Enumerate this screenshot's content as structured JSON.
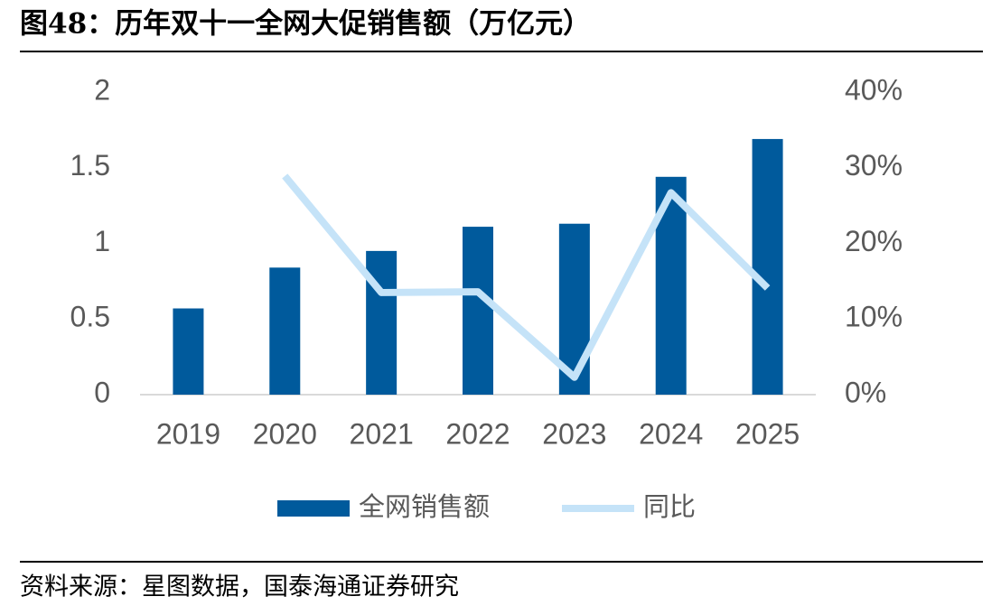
{
  "title": "图48：历年双十一全网大促销售额（万亿元）",
  "source": "资料来源：星图数据，国泰海通证券研究",
  "chart_data": {
    "type": "bar-line",
    "categories": [
      "2019",
      "2020",
      "2021",
      "2022",
      "2023",
      "2024",
      "2025"
    ],
    "series": [
      {
        "name": "全网销售额",
        "type": "bar",
        "color": "#005a9c",
        "values": [
          0.57,
          0.84,
          0.95,
          1.11,
          1.13,
          1.44,
          1.69
        ]
      },
      {
        "name": "同比",
        "type": "line",
        "axis": "y2",
        "color": "#c5e3f8",
        "values": [
          null,
          28.9,
          13.5,
          13.6,
          2.3,
          26.7,
          14.1
        ]
      }
    ],
    "ylim": [
      0,
      2
    ],
    "yticks": [
      0,
      0.5,
      1,
      1.5,
      2
    ],
    "y2lim": [
      0,
      40
    ],
    "y2ticks": [
      {
        "value": 0,
        "label": "0%"
      },
      {
        "value": 10,
        "label": "10%"
      },
      {
        "value": 20,
        "label": "20%"
      },
      {
        "value": 30,
        "label": "30%"
      },
      {
        "value": 40,
        "label": "40%"
      }
    ],
    "legend": "bottom"
  }
}
